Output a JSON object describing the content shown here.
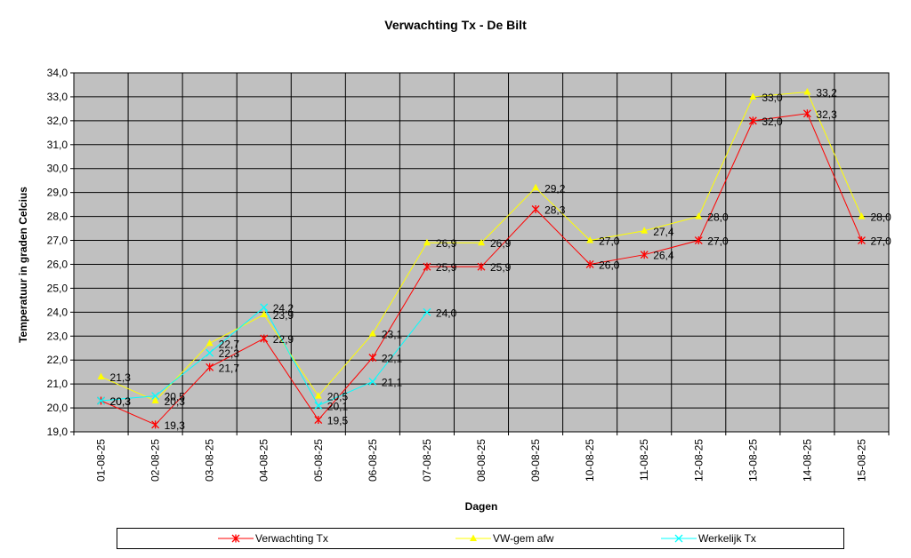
{
  "chart_data": {
    "type": "line",
    "title": "Verwachting Tx - De Bilt",
    "xlabel": "Dagen",
    "ylabel": "Temperatuur in graden Celcius",
    "ylim": [
      19.0,
      34.0
    ],
    "ytick_step": 1.0,
    "yticks": [
      "19,0",
      "20,0",
      "21,0",
      "22,0",
      "23,0",
      "24,0",
      "25,0",
      "26,0",
      "27,0",
      "28,0",
      "29,0",
      "30,0",
      "31,0",
      "32,0",
      "33,0",
      "34,0"
    ],
    "grid": true,
    "plot_background": "#c0c0c0",
    "legend_position": "bottom",
    "categories": [
      "01-08-25",
      "02-08-25",
      "03-08-25",
      "04-08-25",
      "05-08-25",
      "06-08-25",
      "07-08-25",
      "08-08-25",
      "09-08-25",
      "10-08-25",
      "11-08-25",
      "12-08-25",
      "13-08-25",
      "14-08-25",
      "15-08-25"
    ],
    "series": [
      {
        "name": "Verwachting Tx",
        "color": "#ff0000",
        "marker": "star",
        "values": [
          20.3,
          19.3,
          21.7,
          22.9,
          19.5,
          22.1,
          25.9,
          25.9,
          28.3,
          26.0,
          26.4,
          27.0,
          32.0,
          32.3,
          27.0
        ],
        "labels": [
          "20,3",
          "19,3",
          "21,7",
          "22,9",
          "19,5",
          "22,1",
          "25,9",
          "25,9",
          "28,3",
          "26,0",
          "26,4",
          "27,0",
          "32,0",
          "32,3",
          "27,0"
        ]
      },
      {
        "name": "VW-gem afw",
        "color": "#ffff00",
        "marker": "triangle",
        "values": [
          21.3,
          20.3,
          22.7,
          23.9,
          20.5,
          23.1,
          26.9,
          26.9,
          29.2,
          27.0,
          27.4,
          28.0,
          33.0,
          33.2,
          28.0
        ],
        "labels": [
          "21,3",
          "20,3",
          "22,7",
          "23,9",
          "20,5",
          "23,1",
          "26,9",
          "26,9",
          "29,2",
          "27,0",
          "27,4",
          "28,0",
          "33,0",
          "33,2",
          "28,0"
        ]
      },
      {
        "name": "Werkelijk Tx",
        "color": "#00ffff",
        "marker": "x",
        "values": [
          20.3,
          20.5,
          22.3,
          24.2,
          20.1,
          21.1,
          24.0,
          null,
          null,
          null,
          null,
          null,
          null,
          null,
          null
        ],
        "labels": [
          "20,3",
          "20,5",
          "22,3",
          "24,2",
          "20,1",
          "21,1",
          "24,0",
          null,
          null,
          null,
          null,
          null,
          null,
          null,
          null
        ]
      }
    ]
  }
}
